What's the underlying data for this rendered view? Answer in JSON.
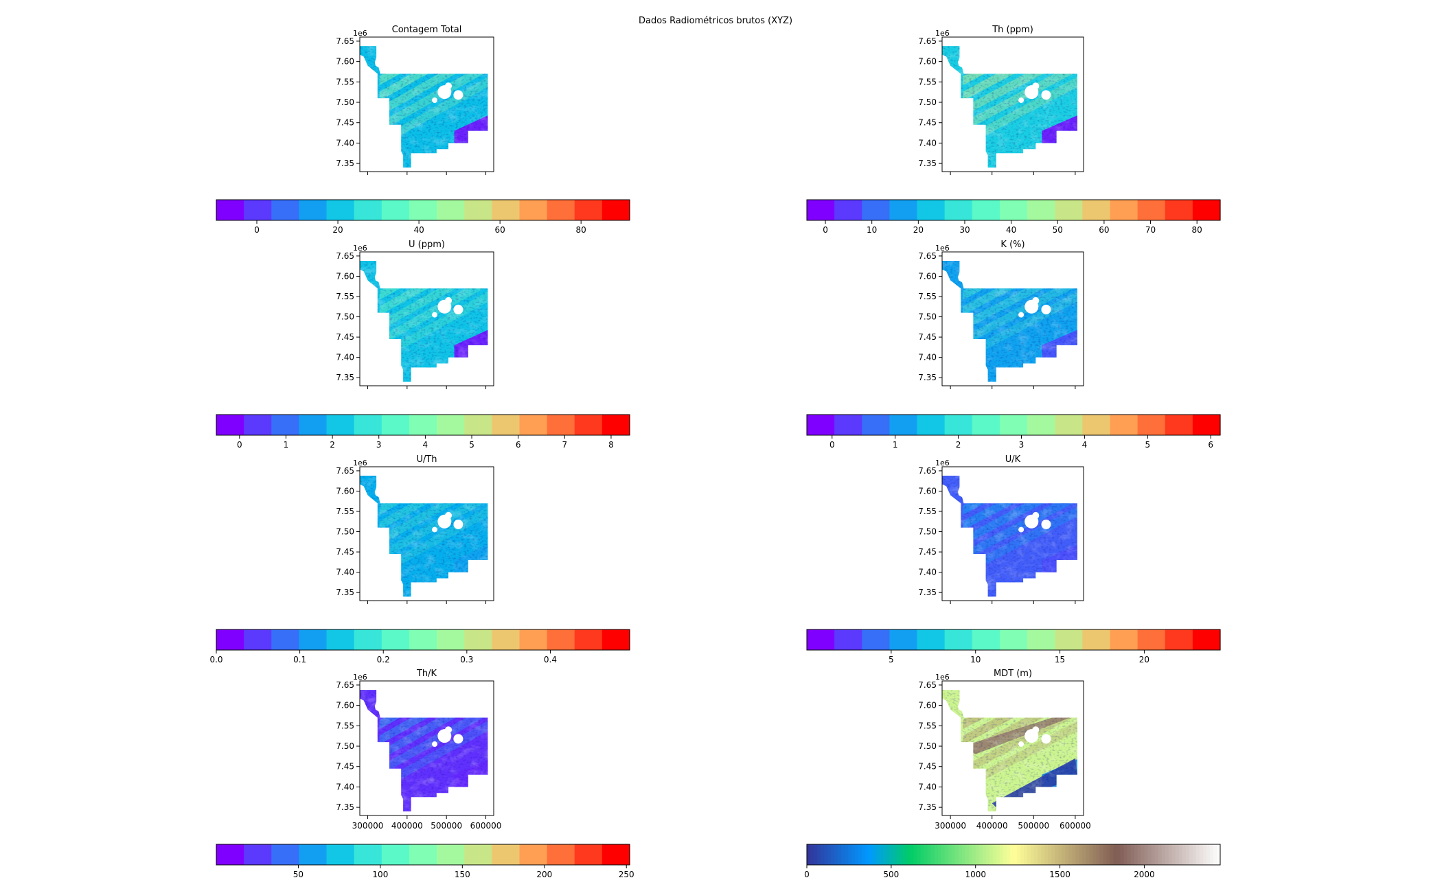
{
  "figure": {
    "suptitle": "Dados Radiométricos brutos (XYZ)",
    "y_exponent_label": "1e6",
    "map_xticks": [
      "300000",
      "400000",
      "500000",
      "600000"
    ],
    "map_yticks": [
      "7.35",
      "7.40",
      "7.45",
      "7.50",
      "7.55",
      "7.60",
      "7.65"
    ],
    "map_xlim": [
      280000,
      620000
    ],
    "map_ylim": [
      7330000,
      7660000
    ],
    "colormaps": {
      "rainbow": "rainbow (15 discrete levels)",
      "terrain": "terrain (continuous)"
    }
  },
  "chart_data": [
    {
      "type": "heatmap",
      "title": "Contagem Total",
      "colormap": "rainbow",
      "colorbar": {
        "vmin": -10,
        "vmax": 92,
        "ticks": [
          0,
          20,
          40,
          60,
          80
        ]
      }
    },
    {
      "type": "heatmap",
      "title": "Th (ppm)",
      "colormap": "rainbow",
      "colorbar": {
        "vmin": -4,
        "vmax": 85,
        "ticks": [
          0,
          10,
          20,
          30,
          40,
          50,
          60,
          70,
          80
        ]
      }
    },
    {
      "type": "heatmap",
      "title": "U (ppm)",
      "colormap": "rainbow",
      "colorbar": {
        "vmin": -0.5,
        "vmax": 8.4,
        "ticks": [
          0,
          1,
          2,
          3,
          4,
          5,
          6,
          7,
          8
        ]
      }
    },
    {
      "type": "heatmap",
      "title": "K (%)",
      "colormap": "rainbow",
      "colorbar": {
        "vmin": -0.4,
        "vmax": 6.15,
        "ticks": [
          0,
          1,
          2,
          3,
          4,
          5,
          6
        ]
      }
    },
    {
      "type": "heatmap",
      "title": "U/Th",
      "colormap": "rainbow",
      "colorbar": {
        "vmin": 0.0,
        "vmax": 0.495,
        "ticks": [
          "0.0",
          "0.1",
          "0.2",
          "0.3",
          "0.4"
        ]
      }
    },
    {
      "type": "heatmap",
      "title": "U/K",
      "colormap": "rainbow",
      "colorbar": {
        "vmin": 0,
        "vmax": 24.5,
        "ticks": [
          5,
          10,
          15,
          20
        ]
      }
    },
    {
      "type": "heatmap",
      "title": "Th/K",
      "colormap": "rainbow",
      "colorbar": {
        "vmin": 0,
        "vmax": 252,
        "ticks": [
          50,
          100,
          150,
          200,
          250
        ]
      }
    },
    {
      "type": "heatmap",
      "title": "MDT (m)",
      "colormap": "terrain",
      "colorbar": {
        "vmin": 0,
        "vmax": 2450,
        "ticks": [
          0,
          500,
          1000,
          1500,
          2000
        ]
      }
    }
  ]
}
